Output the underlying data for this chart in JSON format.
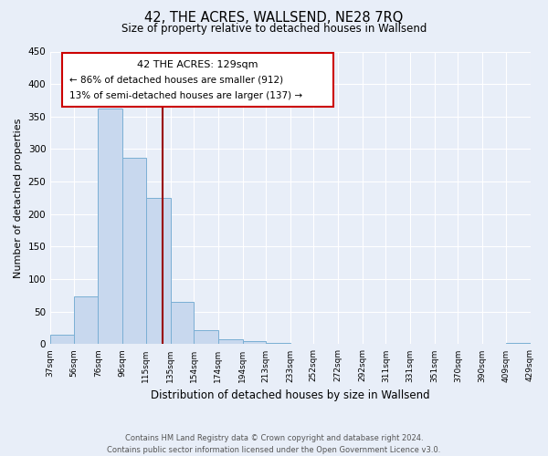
{
  "title": "42, THE ACRES, WALLSEND, NE28 7RQ",
  "subtitle": "Size of property relative to detached houses in Wallsend",
  "xlabel": "Distribution of detached houses by size in Wallsend",
  "ylabel": "Number of detached properties",
  "footer_line1": "Contains HM Land Registry data © Crown copyright and database right 2024.",
  "footer_line2": "Contains public sector information licensed under the Open Government Licence v3.0.",
  "bin_edges": [
    37,
    56,
    76,
    96,
    115,
    135,
    154,
    174,
    194,
    213,
    233,
    252,
    272,
    292,
    311,
    331,
    351,
    370,
    390,
    409,
    429
  ],
  "bar_heights": [
    15,
    73,
    362,
    287,
    225,
    65,
    22,
    7,
    5,
    2,
    0,
    0,
    0,
    0,
    0,
    0,
    0,
    0,
    0,
    2
  ],
  "bar_color": "#c8d8ee",
  "bar_edge_color": "#7aafd4",
  "vline_x": 129,
  "vline_color": "#990000",
  "annotation_title": "42 THE ACRES: 129sqm",
  "annotation_line1": "← 86% of detached houses are smaller (912)",
  "annotation_line2": "13% of semi-detached houses are larger (137) →",
  "annotation_box_color": "#cc0000",
  "annotation_bg": "#ffffff",
  "ylim": [
    0,
    450
  ],
  "yticks": [
    0,
    50,
    100,
    150,
    200,
    250,
    300,
    350,
    400,
    450
  ],
  "bg_color": "#e8eef8",
  "grid_color": "#ffffff",
  "fig_width": 6.0,
  "fig_height": 5.0,
  "dpi": 100
}
